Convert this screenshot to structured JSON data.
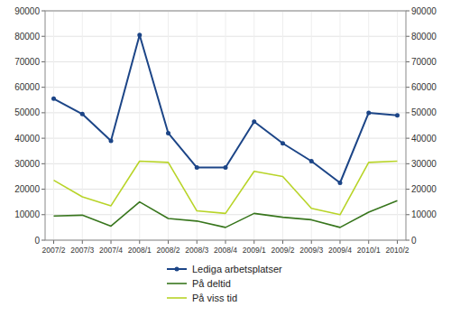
{
  "chart_data": {
    "type": "line",
    "categories": [
      "2007/2",
      "2007/3",
      "2007/4",
      "2008/1",
      "2008/2",
      "2008/3",
      "2008/4",
      "2009/1",
      "2009/2",
      "2009/3",
      "2009/4",
      "2010/1",
      "2010/2"
    ],
    "series": [
      {
        "name": "Lediga arbetsplatser",
        "color": "#1c4587",
        "marker": "circle",
        "values": [
          55500,
          49500,
          39000,
          80500,
          42000,
          28500,
          28500,
          46500,
          38000,
          31000,
          22500,
          50000,
          49000
        ]
      },
      {
        "name": "På deltid",
        "color": "#38761d",
        "values": [
          9500,
          9800,
          5500,
          15000,
          8500,
          7500,
          5000,
          10500,
          9000,
          8000,
          5000,
          11000,
          15500
        ]
      },
      {
        "name": "På viss tid",
        "color": "#b8d428",
        "values": [
          23500,
          17000,
          13500,
          31000,
          30500,
          11500,
          10500,
          27000,
          25000,
          12500,
          10000,
          30500,
          31000
        ]
      }
    ],
    "ylim": [
      0,
      90000
    ],
    "yticks": [
      0,
      10000,
      20000,
      30000,
      40000,
      50000,
      60000,
      70000,
      80000,
      90000
    ],
    "y2lim": [
      0,
      90000
    ],
    "y2ticks": [
      0,
      10000,
      20000,
      30000,
      40000,
      50000,
      60000,
      70000,
      80000,
      90000
    ],
    "grid": true,
    "legend": "bottom"
  }
}
